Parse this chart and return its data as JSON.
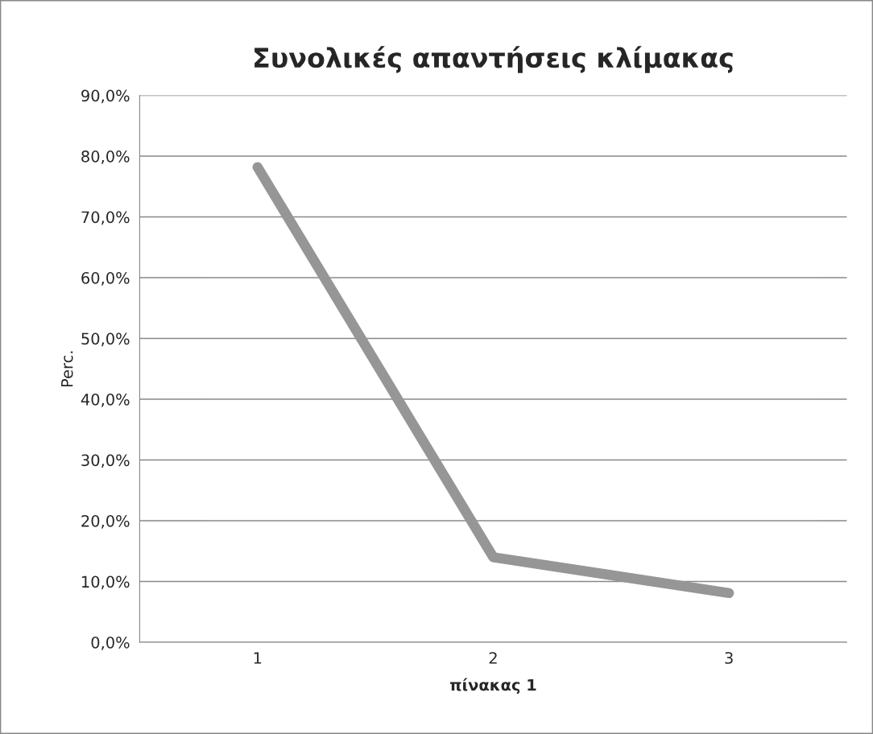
{
  "chart_data": {
    "type": "line",
    "title": "Συνολικές απαντήσεις κλίμακας",
    "xlabel": "πίνακας 1",
    "ylabel": "Perc.",
    "categories": [
      "1",
      "2",
      "3"
    ],
    "series": [
      {
        "color": "#969696",
        "values": [
          78.2,
          14.0,
          8.1
        ]
      }
    ],
    "ylim": [
      0,
      90
    ],
    "yticks": [
      {
        "value": 0,
        "label": "0,0%"
      },
      {
        "value": 10,
        "label": "10,0%"
      },
      {
        "value": 20,
        "label": "20,0%"
      },
      {
        "value": 30,
        "label": "30,0%"
      },
      {
        "value": 40,
        "label": "40,0%"
      },
      {
        "value": 50,
        "label": "50,0%"
      },
      {
        "value": 60,
        "label": "60,0%"
      },
      {
        "value": 70,
        "label": "70,0%"
      },
      {
        "value": 80,
        "label": "80,0%"
      },
      {
        "value": 90,
        "label": "90,0%"
      }
    ],
    "grid": "y",
    "legend": false,
    "marker": "none",
    "line_style": "solid"
  }
}
